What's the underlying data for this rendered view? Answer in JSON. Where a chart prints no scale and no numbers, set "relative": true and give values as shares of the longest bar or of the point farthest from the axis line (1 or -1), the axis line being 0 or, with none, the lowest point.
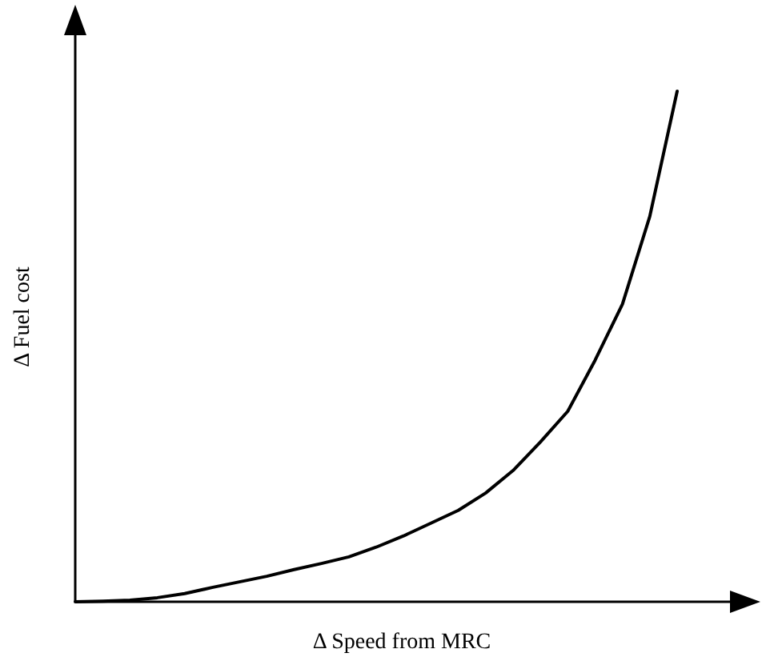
{
  "chart_data": {
    "type": "line",
    "xlabel": "Δ Speed from MRC",
    "ylabel": "Δ Fuel cost",
    "relative": true,
    "marker": "none",
    "line_style": "solid",
    "categories": [
      null,
      null,
      null,
      null,
      null,
      null,
      null,
      null,
      null,
      null,
      null,
      null,
      null,
      null,
      null,
      null,
      null,
      null,
      null,
      null,
      null,
      null,
      null
    ],
    "series": [
      {
        "color": "#000000",
        "values": [
          0,
          0.001,
          0.003,
          0.008,
          0.016,
          0.028,
          0.039,
          0.05,
          0.063,
          0.075,
          0.088,
          0.107,
          0.129,
          0.154,
          0.179,
          0.213,
          0.257,
          0.313,
          0.373,
          0.473,
          0.583,
          0.755,
          1
        ]
      }
    ]
  }
}
